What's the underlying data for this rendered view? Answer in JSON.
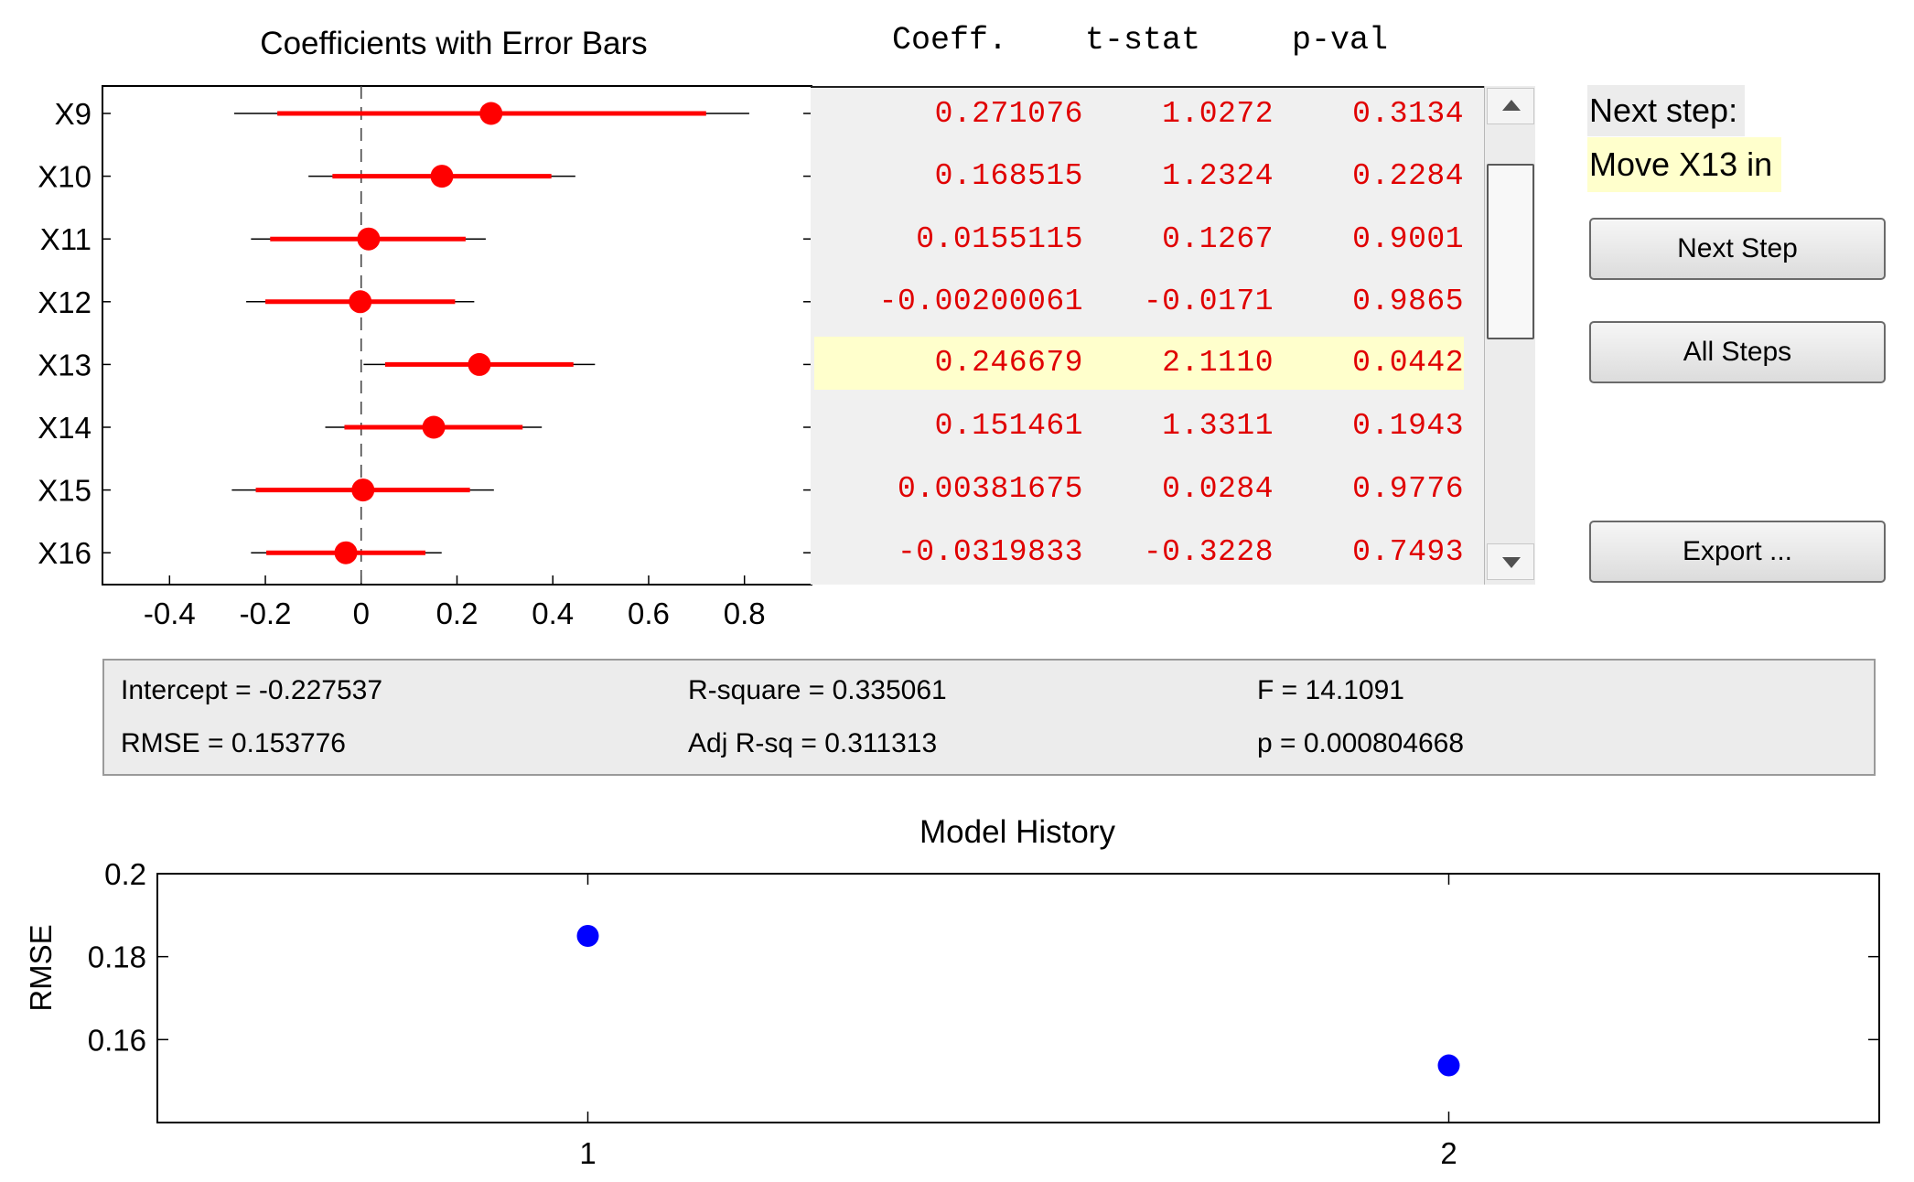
{
  "coef_plot": {
    "title": "Coefficients with Error Bars",
    "colors": {
      "estimate": "#ff0000",
      "outer_bar": "#000000",
      "zero_line": "#404040"
    }
  },
  "table": {
    "headers": {
      "coeff": "Coeff.",
      "tstat": "t-stat",
      "pval": "p-val"
    },
    "rows": [
      {
        "coeff": "0.271076",
        "tstat": "1.0272",
        "pval": "0.3134",
        "highlight": false
      },
      {
        "coeff": "0.168515",
        "tstat": "1.2324",
        "pval": "0.2284",
        "highlight": false
      },
      {
        "coeff": "0.0155115",
        "tstat": "0.1267",
        "pval": "0.9001",
        "highlight": false
      },
      {
        "coeff": "-0.00200061",
        "tstat": "-0.0171",
        "pval": "0.9865",
        "highlight": false
      },
      {
        "coeff": "0.246679",
        "tstat": "2.1110",
        "pval": "0.0442",
        "highlight": true
      },
      {
        "coeff": "0.151461",
        "tstat": "1.3311",
        "pval": "0.1943",
        "highlight": false
      },
      {
        "coeff": "0.00381675",
        "tstat": "0.0284",
        "pval": "0.9776",
        "highlight": false
      },
      {
        "coeff": "-0.0319833",
        "tstat": "-0.3228",
        "pval": "0.7493",
        "highlight": false
      }
    ],
    "scroll_position": 0.5
  },
  "next_step": {
    "label": "Next step:",
    "value": "Move X13 in"
  },
  "buttons": {
    "next_step": "Next Step",
    "all_steps": "All Steps",
    "export": "Export ..."
  },
  "stats": {
    "intercept": "Intercept = -0.227537",
    "rmse": "RMSE = 0.153776",
    "rsquare": "R-square = 0.335061",
    "adj_rsq": "Adj R-sq = 0.311313",
    "f": "F = 14.1091",
    "p": "p = 0.000804668"
  },
  "chart_data": [
    {
      "type": "scatter",
      "title": "Coefficients with Error Bars",
      "xlabel": "",
      "ylabel": "",
      "xlim": [
        -0.54,
        0.94
      ],
      "xticks": [
        -0.4,
        -0.2,
        0,
        0.2,
        0.4,
        0.6,
        0.8
      ],
      "xtick_labels": [
        "-0.4",
        "-0.2",
        "0",
        "0.2",
        "0.4",
        "0.6",
        "0.8"
      ],
      "categories": [
        "X9",
        "X10",
        "X11",
        "X12",
        "X13",
        "X14",
        "X15",
        "X16"
      ],
      "estimates": [
        0.271076,
        0.168515,
        0.0155115,
        -0.00200061,
        0.246679,
        0.151461,
        0.00381675,
        -0.0319833
      ],
      "inner_ci": [
        [
          -0.175,
          0.72
        ],
        [
          -0.06,
          0.397
        ],
        [
          -0.19,
          0.218
        ],
        [
          -0.2,
          0.196
        ],
        [
          0.05,
          0.443
        ],
        [
          -0.035,
          0.337
        ],
        [
          -0.22,
          0.227
        ],
        [
          -0.198,
          0.134
        ]
      ],
      "outer_ci": [
        [
          -0.265,
          0.81
        ],
        [
          -0.11,
          0.447
        ],
        [
          -0.23,
          0.26
        ],
        [
          -0.24,
          0.236
        ],
        [
          0.005,
          0.488
        ],
        [
          -0.075,
          0.377
        ],
        [
          -0.27,
          0.277
        ],
        [
          -0.23,
          0.168
        ]
      ],
      "reference_line": 0
    },
    {
      "type": "scatter",
      "title": "Model History",
      "xlabel": "",
      "ylabel": "RMSE",
      "x": [
        1,
        2
      ],
      "y": [
        0.185,
        0.153776
      ],
      "xlim": [
        0.5,
        2.5
      ],
      "ylim": [
        0.14,
        0.2
      ],
      "xticks": [
        1,
        2
      ],
      "xtick_labels": [
        "1",
        "2"
      ],
      "yticks": [
        0.16,
        0.18,
        0.2
      ],
      "ytick_labels": [
        "0.16",
        "0.18",
        "0.2"
      ],
      "color": "#0000ff"
    }
  ]
}
